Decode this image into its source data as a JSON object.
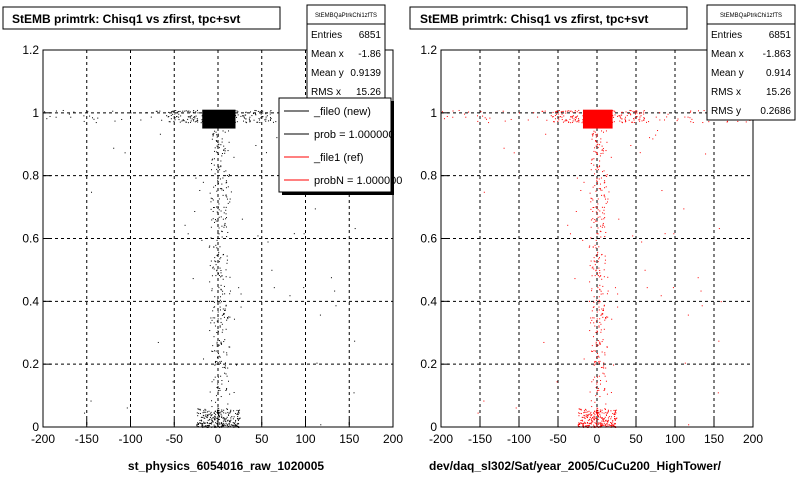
{
  "chart_data": [
    {
      "type": "scatter",
      "title": "StEMB primtrk: Chisq1 vs zfirst, tpc+svt",
      "xlabel": "st_physics_6054016_raw_1020005",
      "ylabel": "",
      "xlim": [
        -200,
        200
      ],
      "ylim": [
        0,
        1.2
      ],
      "x_ticks": [
        "-200",
        "-150",
        "-100",
        "-50",
        "0",
        "50",
        "100",
        "150",
        "200"
      ],
      "y_ticks": [
        "0",
        "0.2",
        "0.4",
        "0.6",
        "0.8",
        "1",
        "1.2"
      ],
      "grid": true,
      "color": "#000000",
      "stats": {
        "name": "StEMBQaPtrkChi1zfTS",
        "rows": [
          {
            "label": "Entries",
            "value": "6851"
          },
          {
            "label": "Mean x",
            "value": "-1.86"
          },
          {
            "label": "Mean y",
            "value": "0.9139"
          },
          {
            "label": "RMS x",
            "value": "15.26"
          }
        ]
      },
      "legend": {
        "placement": "right",
        "entries": [
          {
            "label": "_file0 (new)",
            "color": "#000000"
          },
          {
            "label": "prob = 1.000000",
            "color": "#000000"
          },
          {
            "label": "_file1 (ref)",
            "color": "#ff0000"
          },
          {
            "label": "probN = 1.000000",
            "color": "#ff0000"
          }
        ]
      },
      "dense_region": {
        "x": [
          -18,
          20
        ],
        "y": [
          0.95,
          1.01
        ]
      },
      "bands": [
        {
          "x": [
            -200,
            200
          ],
          "y": [
            0.97,
            1.01
          ],
          "weight": "line"
        },
        {
          "x": [
            -8,
            12
          ],
          "y": [
            0.0,
            0.95
          ],
          "weight": "column"
        },
        {
          "x": [
            -25,
            25
          ],
          "y": [
            0.0,
            0.06
          ],
          "weight": "cluster"
        }
      ]
    },
    {
      "type": "scatter",
      "title": "StEMB primtrk: Chisq1 vs zfirst, tpc+svt",
      "xlabel": "dev/daq_sl302/Sat/year_2005/CuCu200_HighTower/",
      "ylabel": "",
      "xlim": [
        -200,
        200
      ],
      "ylim": [
        0,
        1.2
      ],
      "x_ticks": [
        "-200",
        "-150",
        "-100",
        "-50",
        "0",
        "50",
        "100",
        "150",
        "200"
      ],
      "y_ticks": [
        "0",
        "0.2",
        "0.4",
        "0.6",
        "0.8",
        "1",
        "1.2"
      ],
      "grid": true,
      "color": "#ff0000",
      "stats": {
        "name": "StEMBQaPtrkChi1zfTS",
        "rows": [
          {
            "label": "Entries",
            "value": "6851"
          },
          {
            "label": "Mean x",
            "value": "-1.863"
          },
          {
            "label": "Mean y",
            "value": "0.914"
          },
          {
            "label": "RMS x",
            "value": "15.26"
          },
          {
            "label": "RMS y",
            "value": "0.2686"
          }
        ]
      },
      "dense_region": {
        "x": [
          -18,
          20
        ],
        "y": [
          0.95,
          1.01
        ]
      },
      "bands": [
        {
          "x": [
            -200,
            200
          ],
          "y": [
            0.97,
            1.01
          ],
          "weight": "line"
        },
        {
          "x": [
            -8,
            12
          ],
          "y": [
            0.0,
            0.95
          ],
          "weight": "column"
        },
        {
          "x": [
            -25,
            25
          ],
          "y": [
            0.0,
            0.06
          ],
          "weight": "cluster"
        }
      ]
    }
  ]
}
